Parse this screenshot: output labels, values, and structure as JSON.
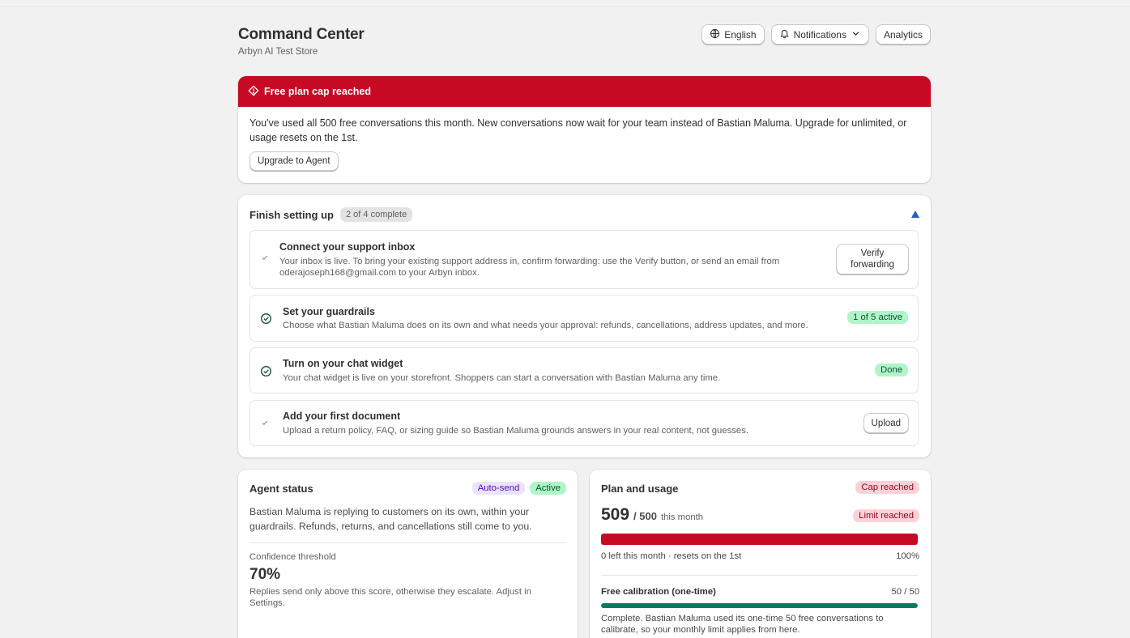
{
  "header": {
    "title": "Command Center",
    "subtitle": "Arbyn AI Test Store",
    "language_label": "English",
    "notifications_label": "Notifications",
    "analytics_label": "Analytics"
  },
  "alert": {
    "title": "Free plan cap reached",
    "message": "You've used all 500 free conversations this month. New conversations now wait for your team instead of Bastian Maluma. Upgrade for unlimited, or usage resets on the 1st.",
    "button_label": "Upgrade to Agent",
    "color": "#c70a24"
  },
  "setup": {
    "title": "Finish setting up",
    "progress_label": "2 of 4 complete",
    "tasks": [
      {
        "title": "Connect your support inbox",
        "description": "Your inbox is live. To bring your existing support address in, confirm forwarding: use the Verify button, or send an email from oderajoseph168@gmail.com to your Arbyn inbox.",
        "action_label": "Verify forwarding",
        "icon": "check-icon"
      },
      {
        "title": "Set your guardrails",
        "description": "Choose what Bastian Maluma does on its own and what needs your approval: refunds, cancellations, address updates, and more.",
        "badge": "1 of 5 active",
        "icon": "check-circle-icon"
      },
      {
        "title": "Turn on your chat widget",
        "description": "Your chat widget is live on your storefront. Shoppers can start a conversation with Bastian Maluma any time.",
        "badge": "Done",
        "icon": "check-circle-icon"
      },
      {
        "title": "Add your first document",
        "description": "Upload a return policy, FAQ, or sizing guide so Bastian Maluma grounds answers in your real content, not guesses.",
        "action_label": "Upload",
        "icon": "check-icon"
      }
    ]
  },
  "agent_status": {
    "title": "Agent status",
    "badges": [
      "Auto-send",
      "Active"
    ],
    "description": "Bastian Maluma is replying to customers on its own, within your guardrails. Refunds, returns, and cancellations still come to you.",
    "threshold_label": "Confidence threshold",
    "threshold_value": "70%",
    "threshold_note": "Replies send only above this score, otherwise they escalate. Adjust in Settings."
  },
  "plan": {
    "title": "Plan and usage",
    "cap_badge": "Cap reached",
    "limit_badge": "Limit reached",
    "used": "509",
    "limit": "/ 500",
    "period": "this month",
    "usage_fraction": 1.0,
    "remaining_text": "0 left this month · resets on the 1st",
    "percent_text": "100%",
    "usage_bar_color": "#c70a24",
    "calibration_title": "Free calibration (one-time)",
    "calibration_count": "50 / 50",
    "calibration_fraction": 1.0,
    "calibration_bar_color": "#047b5d",
    "calibration_note": "Complete. Bastian Maluma used its one-time 50 free conversations to calibrate, so your monthly limit applies from here."
  }
}
